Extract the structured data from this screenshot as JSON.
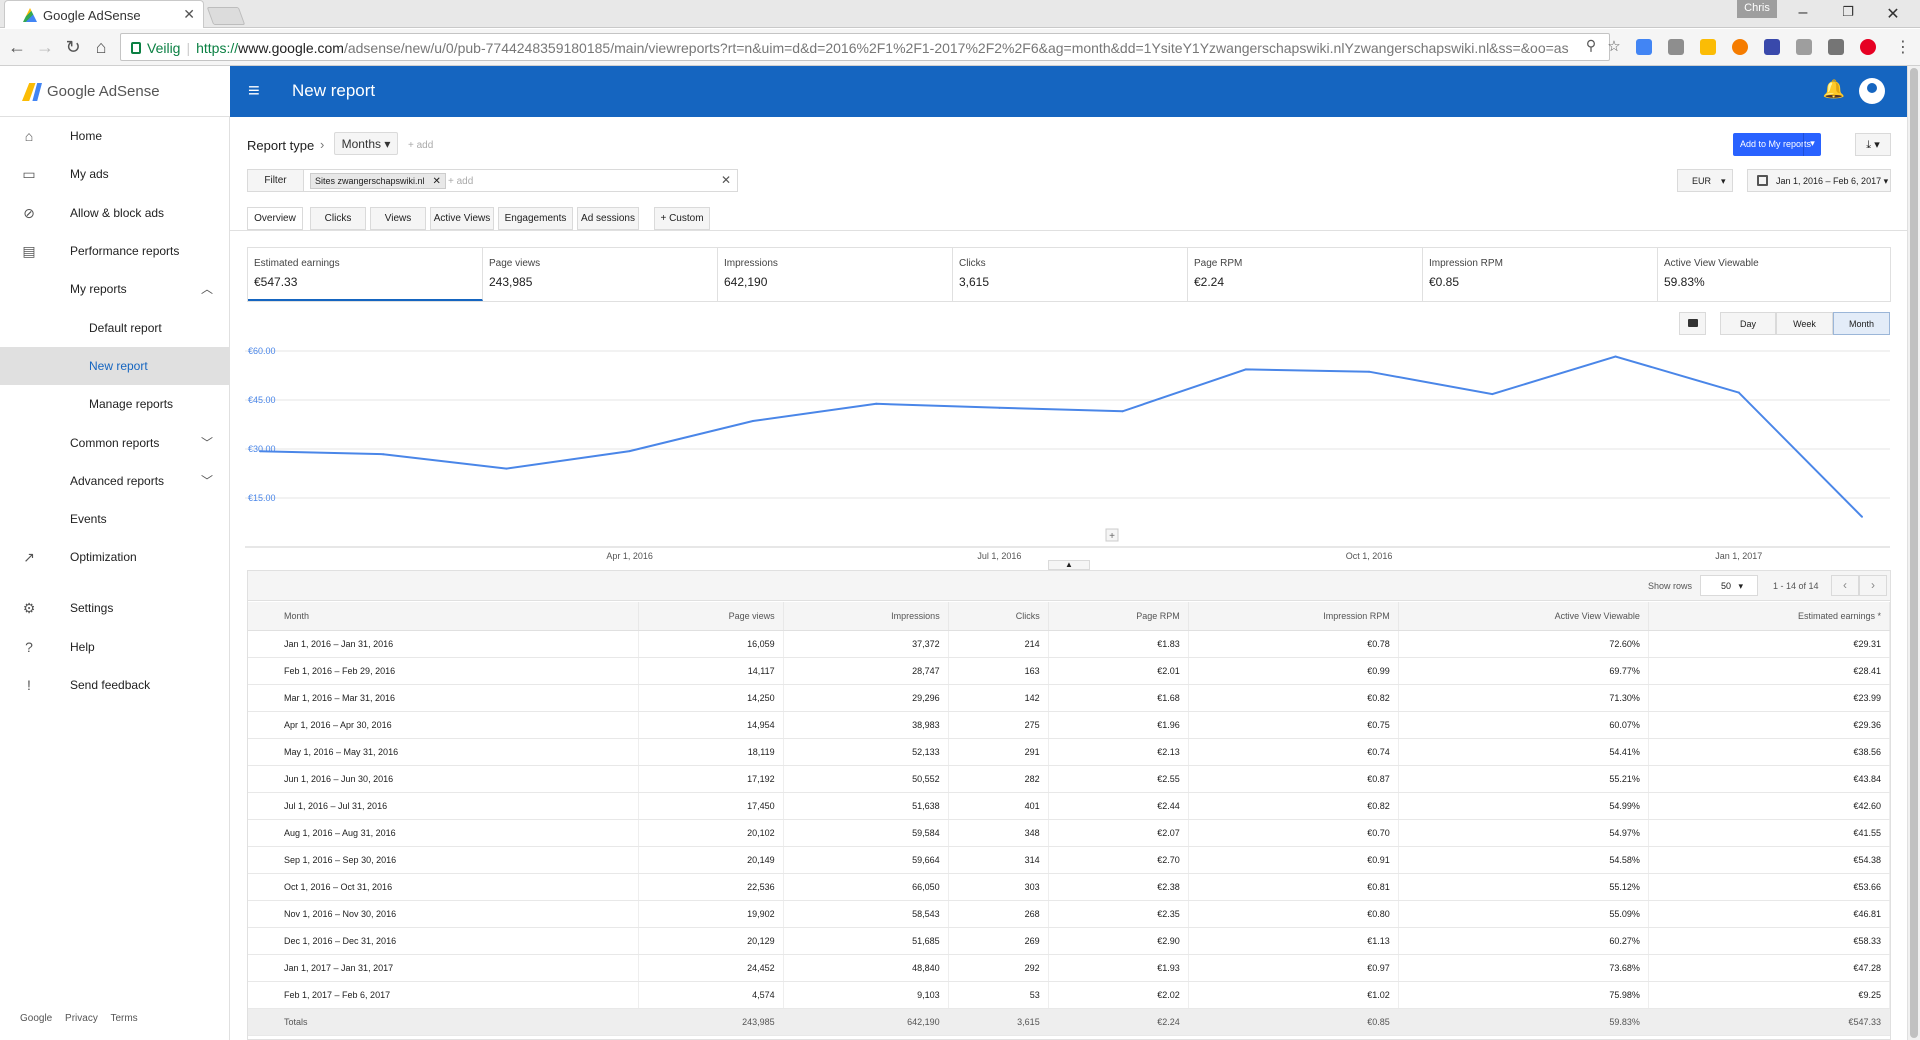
{
  "browser": {
    "tab_title": "Google AdSense",
    "profile_name": "Chris",
    "secure_label": "Veilig",
    "url_scheme": "https://",
    "url_host": "www.google.com",
    "url_path": "/adsense/new/u/0/pub-7744248359180185/main/viewreports?rt=n&uim=d&d=2016%2F1%2F1-2017%2F2%2F6&ag=month&dd=1YsiteY1Yzwangerschapswiki.nlYzwangerschapswiki.nl&ss=&oo=as"
  },
  "app": {
    "logo_text": "Google AdSense",
    "page_title": "New report"
  },
  "sidebar": {
    "items": [
      {
        "label": "Home",
        "icon": "home-icon"
      },
      {
        "label": "My ads",
        "icon": "ads-icon"
      },
      {
        "label": "Allow & block ads",
        "icon": "block-icon"
      },
      {
        "label": "Performance reports",
        "icon": "bar-chart-icon"
      },
      {
        "label": "My reports"
      },
      {
        "label": "Default report"
      },
      {
        "label": "New report"
      },
      {
        "label": "Manage reports"
      },
      {
        "label": "Common reports"
      },
      {
        "label": "Advanced reports"
      },
      {
        "label": "Events"
      },
      {
        "label": "Optimization",
        "icon": "trending-icon"
      },
      {
        "label": "Settings",
        "icon": "gear-icon"
      },
      {
        "label": "Help",
        "icon": "help-icon"
      },
      {
        "label": "Send feedback",
        "icon": "feedback-icon"
      }
    ],
    "footer": [
      "Google",
      "Privacy",
      "Terms"
    ]
  },
  "report": {
    "type_label": "Report type",
    "type_value": "Months",
    "add_label": "+ add",
    "filter_label": "Filter",
    "filter_chip": "Sites zwangerschapswiki.nl",
    "filter_add": "+ add",
    "add_to_my_reports": "Add to My reports",
    "currency": "EUR",
    "date_range": "Jan 1, 2016 – Feb 6, 2017",
    "tabs": [
      "Overview",
      "Clicks",
      "Views",
      "Active Views",
      "Engagements",
      "Ad sessions",
      "+ Custom"
    ]
  },
  "metrics": [
    {
      "label": "Estimated earnings",
      "value": "€547.33"
    },
    {
      "label": "Page views",
      "value": "243,985"
    },
    {
      "label": "Impressions",
      "value": "642,190"
    },
    {
      "label": "Clicks",
      "value": "3,615"
    },
    {
      "label": "Page RPM",
      "value": "€2.24"
    },
    {
      "label": "Impression RPM",
      "value": "€0.85"
    },
    {
      "label": "Active View Viewable",
      "value": "59.83%"
    }
  ],
  "granularity": [
    "Day",
    "Week",
    "Month"
  ],
  "chart_data": {
    "type": "line",
    "y_ticks": [
      "€60.00",
      "€45.00",
      "€30.00",
      "€15.00"
    ],
    "y_tick_values": [
      60,
      45,
      30,
      15
    ],
    "x_tick_labels": [
      "Apr 1, 2016",
      "Jul 1, 2016",
      "Oct 1, 2016",
      "Jan 1, 2017"
    ],
    "x_tick_index": [
      3,
      6,
      9,
      12
    ],
    "ylim": [
      0,
      60
    ],
    "categories": [
      "Jan 2016",
      "Feb 2016",
      "Mar 2016",
      "Apr 2016",
      "May 2016",
      "Jun 2016",
      "Jul 2016",
      "Aug 2016",
      "Sep 2016",
      "Oct 2016",
      "Nov 2016",
      "Dec 2016",
      "Jan 2017",
      "Feb 2017"
    ],
    "values": [
      29.31,
      28.41,
      23.99,
      29.36,
      38.56,
      43.84,
      42.6,
      41.55,
      54.38,
      53.66,
      46.81,
      58.33,
      47.28,
      9.25
    ],
    "color": "#4a86e8"
  },
  "table": {
    "show_rows_label": "Show rows",
    "show_rows_value": "50",
    "page_info": "1 - 14 of 14",
    "headers": [
      "Month",
      "Page views",
      "Impressions",
      "Clicks",
      "Page RPM",
      "Impression RPM",
      "Active View Viewable",
      "Estimated earnings *"
    ],
    "rows": [
      [
        "Jan 1, 2016 – Jan 31, 2016",
        "16,059",
        "37,372",
        "214",
        "€1.83",
        "€0.78",
        "72.60%",
        "€29.31"
      ],
      [
        "Feb 1, 2016 – Feb 29, 2016",
        "14,117",
        "28,747",
        "163",
        "€2.01",
        "€0.99",
        "69.77%",
        "€28.41"
      ],
      [
        "Mar 1, 2016 – Mar 31, 2016",
        "14,250",
        "29,296",
        "142",
        "€1.68",
        "€0.82",
        "71.30%",
        "€23.99"
      ],
      [
        "Apr 1, 2016 – Apr 30, 2016",
        "14,954",
        "38,983",
        "275",
        "€1.96",
        "€0.75",
        "60.07%",
        "€29.36"
      ],
      [
        "May 1, 2016 – May 31, 2016",
        "18,119",
        "52,133",
        "291",
        "€2.13",
        "€0.74",
        "54.41%",
        "€38.56"
      ],
      [
        "Jun 1, 2016 – Jun 30, 2016",
        "17,192",
        "50,552",
        "282",
        "€2.55",
        "€0.87",
        "55.21%",
        "€43.84"
      ],
      [
        "Jul 1, 2016 – Jul 31, 2016",
        "17,450",
        "51,638",
        "401",
        "€2.44",
        "€0.82",
        "54.99%",
        "€42.60"
      ],
      [
        "Aug 1, 2016 – Aug 31, 2016",
        "20,102",
        "59,584",
        "348",
        "€2.07",
        "€0.70",
        "54.97%",
        "€41.55"
      ],
      [
        "Sep 1, 2016 – Sep 30, 2016",
        "20,149",
        "59,664",
        "314",
        "€2.70",
        "€0.91",
        "54.58%",
        "€54.38"
      ],
      [
        "Oct 1, 2016 – Oct 31, 2016",
        "22,536",
        "66,050",
        "303",
        "€2.38",
        "€0.81",
        "55.12%",
        "€53.66"
      ],
      [
        "Nov 1, 2016 – Nov 30, 2016",
        "19,902",
        "58,543",
        "268",
        "€2.35",
        "€0.80",
        "55.09%",
        "€46.81"
      ],
      [
        "Dec 1, 2016 – Dec 31, 2016",
        "20,129",
        "51,685",
        "269",
        "€2.90",
        "€1.13",
        "60.27%",
        "€58.33"
      ],
      [
        "Jan 1, 2017 – Jan 31, 2017",
        "24,452",
        "48,840",
        "292",
        "€1.93",
        "€0.97",
        "73.68%",
        "€47.28"
      ],
      [
        "Feb 1, 2017 – Feb 6, 2017",
        "4,574",
        "9,103",
        "53",
        "€2.02",
        "€1.02",
        "75.98%",
        "€9.25"
      ]
    ],
    "totals": [
      "Totals",
      "243,985",
      "642,190",
      "3,615",
      "€2.24",
      "€0.85",
      "59.83%",
      "€547.33"
    ]
  }
}
